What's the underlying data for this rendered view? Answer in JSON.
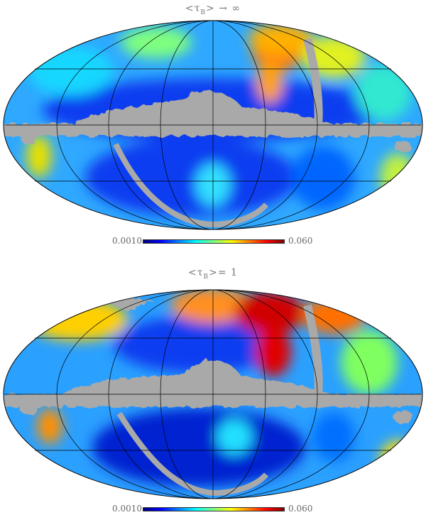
{
  "maps": [
    {
      "title_open": "<τ",
      "title_sub": "B",
      "title_close": "> → ∞",
      "colorbar": {
        "min_label": "0.0010",
        "max_label": "0.060"
      }
    },
    {
      "title_open": "<τ",
      "title_sub": "B",
      "title_close": ">= 1",
      "colorbar": {
        "min_label": "0.0010",
        "max_label": "0.060"
      }
    }
  ],
  "colors": {
    "colormap": [
      "#00007f",
      "#0000ff",
      "#007fff",
      "#00ffff",
      "#7fff7f",
      "#ffff00",
      "#ff7f00",
      "#ff0000",
      "#7f0000"
    ],
    "mask": "#a9a9a9",
    "grid": "#000000",
    "label": "#666666"
  }
}
